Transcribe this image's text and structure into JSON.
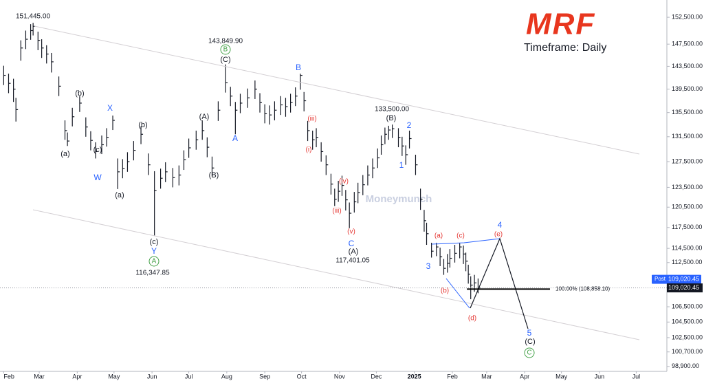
{
  "chart_data": {
    "type": "ohlc",
    "logo": "MRF",
    "subtitle": "Timeframe: Daily",
    "watermark": "Moneymunch",
    "color": "#131722",
    "log_y": true,
    "x": [
      0,
      4,
      8,
      10,
      14,
      18,
      22,
      24,
      28,
      31,
      35,
      39,
      45,
      50,
      52,
      56,
      62,
      67,
      71,
      75,
      80,
      84,
      89,
      93,
      97,
      101,
      106,
      112,
      118,
      123,
      128,
      132,
      138,
      143,
      147,
      151,
      157,
      162,
      166,
      170,
      175,
      181,
      185,
      189,
      193,
      199,
      205,
      209,
      213,
      217,
      221,
      226,
      230,
      234,
      238,
      242,
      245,
      248,
      252,
      255,
      259,
      263,
      267,
      270,
      273,
      276,
      279,
      282,
      286,
      289,
      293,
      297,
      301,
      305,
      308,
      311,
      314,
      317,
      322,
      325,
      328,
      331,
      336,
      340,
      343,
      345,
      349,
      353,
      356,
      359,
      362,
      364,
      368,
      372,
      375,
      377,
      379,
      381,
      384,
      387
    ],
    "high": [
      143600,
      142200,
      141300,
      138000,
      148200,
      150000,
      151200,
      151445,
      149800,
      148400,
      147300,
      145900,
      141700,
      134200,
      132200,
      136300,
      138300,
      134700,
      132400,
      130600,
      131700,
      132900,
      135000,
      128000,
      127900,
      129000,
      130800,
      133200,
      128800,
      126000,
      126400,
      127400,
      126500,
      126900,
      129300,
      131200,
      132500,
      134200,
      131400,
      128300,
      137400,
      143849.9,
      139900,
      137300,
      138700,
      139600,
      141000,
      138800,
      136900,
      136700,
      137400,
      138300,
      138000,
      138700,
      139800,
      142200,
      139000,
      134100,
      132500,
      132900,
      130600,
      128500,
      125600,
      123300,
      124500,
      125300,
      123100,
      121200,
      122800,
      124200,
      125400,
      126900,
      128000,
      129600,
      131700,
      133000,
      133300,
      133500,
      132900,
      131500,
      130100,
      132500,
      128600,
      123300,
      120100,
      118200,
      115300,
      115300,
      114600,
      113000,
      113700,
      114400,
      115000,
      115300,
      114900,
      113900,
      112200,
      110600,
      110800,
      110300
    ],
    "low": [
      140200,
      138800,
      137300,
      134000,
      144500,
      146600,
      148300,
      149100,
      146400,
      145000,
      144000,
      142400,
      138300,
      131000,
      130000,
      133200,
      135600,
      131500,
      129300,
      128000,
      128700,
      129900,
      132600,
      123240,
      124900,
      125900,
      127700,
      130300,
      125400,
      116347.85,
      123300,
      124300,
      123500,
      123800,
      126200,
      128100,
      129400,
      131000,
      128200,
      125200,
      134100,
      138900,
      136600,
      131900,
      135400,
      136300,
      137800,
      135500,
      133700,
      133500,
      134200,
      135100,
      134800,
      135500,
      136600,
      139400,
      135700,
      130800,
      129400,
      129800,
      127500,
      125400,
      122400,
      120660,
      121300,
      122200,
      120000,
      117401.05,
      119700,
      121100,
      122300,
      123800,
      124900,
      126500,
      128600,
      130300,
      131000,
      131300,
      129800,
      128400,
      127000,
      129600,
      125400,
      120100,
      116900,
      115000,
      113200,
      113400,
      112000,
      110800,
      111100,
      111800,
      112500,
      113100,
      112300,
      111300,
      109600,
      107500,
      108500,
      108300
    ],
    "close": [
      141900,
      140500,
      139500,
      136000,
      146800,
      148400,
      150000,
      150800,
      148200,
      146800,
      145700,
      144300,
      140000,
      132500,
      130800,
      134800,
      137100,
      133100,
      130900,
      129100,
      130200,
      131400,
      134200,
      125900,
      126400,
      127500,
      129300,
      131900,
      127000,
      123000,
      124900,
      125900,
      125000,
      125400,
      127800,
      129700,
      131000,
      132500,
      129800,
      126500,
      135900,
      140600,
      138300,
      135900,
      137100,
      138000,
      139500,
      137200,
      135300,
      135100,
      135900,
      136800,
      136500,
      137200,
      138300,
      141900,
      137500,
      132500,
      131000,
      131400,
      129100,
      127000,
      124000,
      121700,
      122900,
      123800,
      121600,
      119600,
      121300,
      122700,
      123900,
      125400,
      126500,
      128100,
      130200,
      131900,
      132600,
      132800,
      131400,
      130000,
      128600,
      131200,
      127000,
      121700,
      118500,
      116600,
      114100,
      114700,
      113300,
      111700,
      112400,
      113100,
      113800,
      114700,
      113700,
      112700,
      110900,
      109400,
      109700,
      109020.45
    ],
    "high_labels": [
      null,
      null,
      null,
      null,
      null,
      null,
      null,
      "151,445.00",
      null,
      null,
      null,
      null,
      null,
      null,
      null,
      null,
      null,
      null,
      null,
      null,
      null,
      null,
      null,
      null,
      null,
      null,
      null,
      null,
      null,
      null,
      null,
      null,
      null,
      null,
      null,
      null,
      null,
      null,
      null,
      null,
      null,
      "143,849.90",
      null,
      null,
      null,
      null,
      null,
      null,
      null,
      null,
      null,
      null,
      null,
      null,
      null,
      null,
      null,
      null,
      null,
      null,
      null,
      null,
      null,
      null,
      null,
      null,
      null,
      null,
      null,
      null,
      null,
      null,
      null,
      null,
      null,
      null,
      null,
      "133,500.00",
      null,
      null,
      null,
      null,
      null,
      null,
      null,
      null,
      null,
      null,
      null,
      null,
      null,
      null,
      null,
      null,
      null,
      null,
      null,
      null,
      null,
      null
    ],
    "low_labels": [
      null,
      null,
      null,
      null,
      null,
      null,
      null,
      null,
      null,
      null,
      null,
      null,
      null,
      null,
      null,
      null,
      null,
      null,
      null,
      null,
      null,
      null,
      null,
      null,
      null,
      null,
      null,
      null,
      null,
      "116,347.85",
      null,
      null,
      null,
      null,
      null,
      null,
      null,
      null,
      null,
      null,
      null,
      null,
      null,
      null,
      null,
      null,
      null,
      null,
      null,
      null,
      null,
      null,
      null,
      null,
      null,
      null,
      null,
      null,
      null,
      null,
      null,
      null,
      null,
      null,
      null,
      null,
      null,
      "117,401.05",
      null,
      null,
      null,
      null,
      null,
      null,
      null,
      null,
      null,
      null,
      null,
      null,
      null,
      null,
      null,
      null,
      null,
      null,
      null,
      null,
      null,
      null,
      null,
      null,
      null,
      null,
      null,
      null,
      null,
      null
    ],
    "xlim": [
      -3,
      541
    ],
    "xticks": [
      {
        "value": 0,
        "label": "Feb"
      },
      {
        "value": 29,
        "label": "Mar"
      },
      {
        "value": 60,
        "label": "Apr"
      },
      {
        "value": 90,
        "label": "May"
      },
      {
        "value": 121,
        "label": "Jun"
      },
      {
        "value": 151,
        "label": "Jul"
      },
      {
        "value": 182,
        "label": "Aug"
      },
      {
        "value": 213,
        "label": "Sep"
      },
      {
        "value": 243,
        "label": "Oct"
      },
      {
        "value": 274,
        "label": "Nov"
      },
      {
        "value": 304,
        "label": "Dec"
      },
      {
        "value": 335,
        "label": "2025"
      },
      {
        "value": 366,
        "label": "Feb"
      },
      {
        "value": 394,
        "label": "Mar"
      },
      {
        "value": 425,
        "label": "Apr"
      },
      {
        "value": 455,
        "label": "May"
      },
      {
        "value": 486,
        "label": "Jun"
      },
      {
        "value": 516,
        "label": "Jul"
      }
    ],
    "ylim": [
      98300,
      155800
    ],
    "yticks": [
      {
        "value": 152500,
        "label": "152,500.00"
      },
      {
        "value": 147500,
        "label": "147,500.00"
      },
      {
        "value": 143500,
        "label": "143,500.00"
      },
      {
        "value": 139500,
        "label": "139,500.00"
      },
      {
        "value": 135500,
        "label": "135,500.00"
      },
      {
        "value": 131500,
        "label": "131,500.00"
      },
      {
        "value": 127500,
        "label": "127,500.00"
      },
      {
        "value": 123500,
        "label": "123,500.00"
      },
      {
        "value": 120500,
        "label": "120,500.00"
      },
      {
        "value": 117500,
        "label": "117,500.00"
      },
      {
        "value": 114500,
        "label": "114,500.00"
      },
      {
        "value": 112500,
        "label": "112,500.00"
      },
      {
        "value": 106500,
        "label": "106,500.00"
      },
      {
        "value": 104500,
        "label": "104,500.00"
      },
      {
        "value": 102500,
        "label": "102,500.00"
      },
      {
        "value": 100700,
        "label": "100,700.00"
      },
      {
        "value": 98900,
        "label": "98,900.00"
      }
    ],
    "last_price": {
      "label": "Post",
      "value": 109020.45,
      "value_label": "109,020.45"
    },
    "levels": [
      {
        "value": 108858.1,
        "label": "100.00% (108,858.10)"
      }
    ],
    "annotations": [
      "(a)",
      "(b)",
      "(c)",
      "(a)",
      "(b)",
      "(c)",
      "(A)",
      "(B)",
      "(C)",
      "(B)",
      "(A)",
      "(C)",
      "X",
      "W",
      "Y",
      "A",
      "B",
      "C",
      "2",
      "1",
      "3",
      "4",
      "5",
      "(iii)",
      "(i)",
      "(iv)",
      "(iii)",
      "(v)",
      "(a)",
      "(c)",
      "(e)",
      "(b)",
      "(d)",
      "B",
      "A",
      "C"
    ]
  }
}
